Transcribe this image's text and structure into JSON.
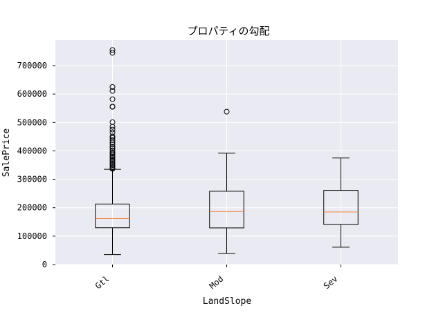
{
  "chart_data": {
    "type": "box",
    "title": "プロパティの勾配",
    "xlabel": "LandSlope",
    "ylabel": "SalePrice",
    "categories": [
      "Gtl",
      "Mod",
      "Sev"
    ],
    "ylim": [
      0,
      790000
    ],
    "yticks": [
      0,
      100000,
      200000,
      300000,
      400000,
      500000,
      600000,
      700000
    ],
    "ytick_labels": [
      "0",
      "100000",
      "200000",
      "300000",
      "400000",
      "500000",
      "600000",
      "700000"
    ],
    "grid": true,
    "boxes": [
      {
        "category": "Gtl",
        "whisker_low": 34900,
        "q1": 129500,
        "median": 161500,
        "q3": 213000,
        "whisker_high": 335000,
        "outliers": [
          337000,
          340000,
          345000,
          350000,
          355000,
          360000,
          365000,
          370000,
          375000,
          380000,
          385000,
          390000,
          395000,
          402000,
          410000,
          415000,
          423000,
          430000,
          438000,
          446000,
          451000,
          465000,
          475000,
          485000,
          501000,
          555000,
          556000,
          582000,
          611000,
          625000,
          745000,
          755000
        ]
      },
      {
        "category": "Mod",
        "whisker_low": 39300,
        "q1": 129000,
        "median": 186700,
        "q3": 258000,
        "whisker_high": 392000,
        "outliers": [
          538000
        ]
      },
      {
        "category": "Sev",
        "whisker_low": 61000,
        "q1": 141000,
        "median": 185000,
        "q3": 261000,
        "whisker_high": 375000,
        "outliers": []
      }
    ],
    "colors": {
      "plot_background": "#eaeaf2",
      "grid": "#ffffff",
      "box": "#000000",
      "median": "#f08030"
    }
  }
}
